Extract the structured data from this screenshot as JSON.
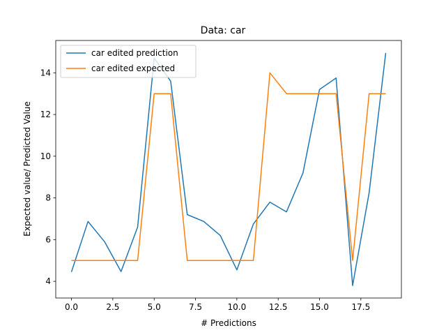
{
  "chart_data": {
    "type": "line",
    "title": "Data: car",
    "xlabel": "# Predictions",
    "ylabel": "Expected value/ Predicted Value",
    "xlim": [
      -0.95,
      19.95
    ],
    "ylim": [
      3.2,
      15.55
    ],
    "xticks": [
      0.0,
      2.5,
      5.0,
      7.5,
      10.0,
      12.5,
      15.0,
      17.5
    ],
    "xtick_labels": [
      "0.0",
      "2.5",
      "5.0",
      "7.5",
      "10.0",
      "12.5",
      "15.0",
      "17.5"
    ],
    "yticks": [
      4,
      6,
      8,
      10,
      12,
      14
    ],
    "ytick_labels": [
      "4",
      "6",
      "8",
      "10",
      "12",
      "14"
    ],
    "grid": false,
    "legend_position": "upper-left",
    "x": [
      0,
      1,
      2,
      3,
      4,
      5,
      6,
      7,
      8,
      9,
      10,
      11,
      12,
      13,
      14,
      15,
      16,
      17,
      18,
      19
    ],
    "series": [
      {
        "name": "car edited prediction",
        "color": "#1f77b4",
        "values": [
          4.45,
          6.87,
          5.9,
          4.47,
          6.6,
          14.7,
          13.6,
          7.2,
          6.87,
          6.2,
          4.55,
          6.75,
          7.8,
          7.33,
          9.2,
          13.2,
          13.75,
          3.8,
          8.25,
          14.95
        ]
      },
      {
        "name": "car edited expected",
        "color": "#ff7f0e",
        "values": [
          5.0,
          5.0,
          5.0,
          5.0,
          5.0,
          13.0,
          13.0,
          5.0,
          5.0,
          5.0,
          5.0,
          5.0,
          14.0,
          13.0,
          13.0,
          13.0,
          13.0,
          5.0,
          13.0,
          13.0
        ]
      }
    ]
  }
}
